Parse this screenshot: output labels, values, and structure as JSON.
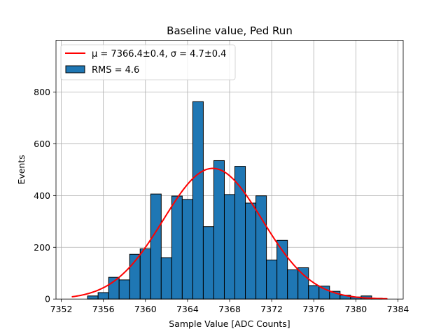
{
  "chart_data": {
    "type": "bar",
    "title": "Baseline value, Ped Run",
    "xlabel": "Sample Value [ADC Counts]",
    "ylabel": "Events",
    "xlim": [
      7351.5,
      7384.5
    ],
    "ylim": [
      0,
      1000
    ],
    "xticks": [
      7352,
      7356,
      7360,
      7364,
      7368,
      7372,
      7376,
      7380,
      7384
    ],
    "yticks": [
      0,
      200,
      400,
      600,
      800
    ],
    "grid": true,
    "bar_color": "#1f77b4",
    "edge_color": "#000000",
    "bin_width": 1.0,
    "histogram": {
      "bin_starts": [
        7354.5,
        7355.5,
        7356.5,
        7357.5,
        7358.5,
        7359.5,
        7360.5,
        7361.5,
        7362.5,
        7363.5,
        7364.5,
        7365.5,
        7366.5,
        7367.5,
        7368.5,
        7369.5,
        7370.5,
        7371.5,
        7372.5,
        7373.5,
        7374.5,
        7375.5,
        7376.5,
        7377.5,
        7378.5,
        7379.5,
        7380.5,
        7381.5
      ],
      "counts": [
        12,
        25,
        84,
        74,
        173,
        194,
        406,
        160,
        398,
        385,
        763,
        280,
        535,
        404,
        513,
        371,
        399,
        151,
        227,
        113,
        121,
        52,
        50,
        30,
        15,
        8,
        12,
        3
      ]
    },
    "fit": {
      "name": "gaussian",
      "color": "#ff0000",
      "mu": 7366.4,
      "sigma": 4.7,
      "amplitude": 505,
      "x_range": [
        7353,
        7383
      ]
    },
    "legend": {
      "location": "upper-left",
      "entries": [
        {
          "kind": "line",
          "label": "μ = 7366.4±0.4, σ = 4.7±0.4"
        },
        {
          "kind": "patch",
          "label": "RMS = 4.6"
        }
      ]
    }
  }
}
